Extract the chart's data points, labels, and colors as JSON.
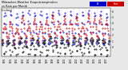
{
  "title": "Milwaukee Weather Evapotranspiration vs Rain per Month (Inches)",
  "title_fontsize": 2.8,
  "background_color": "#e8e8e8",
  "plot_bg_color": "#ffffff",
  "legend_labels": [
    "ET",
    "Rain"
  ],
  "legend_colors": [
    "#0000cc",
    "#cc0000"
  ],
  "months_per_year": 12,
  "years": [
    1990,
    1991,
    1992,
    1993,
    1994,
    1995,
    1996,
    1997,
    1998,
    1999,
    2000,
    2001,
    2002,
    2003,
    2004,
    2005,
    2006,
    2007
  ],
  "et_data": [
    0.5,
    0.6,
    1.2,
    2.5,
    4.0,
    5.2,
    5.8,
    5.3,
    3.8,
    2.3,
    1.0,
    0.5,
    0.6,
    0.7,
    1.5,
    2.8,
    4.3,
    5.5,
    6.0,
    5.4,
    3.9,
    2.4,
    1.1,
    0.6,
    0.5,
    0.6,
    1.3,
    2.4,
    3.8,
    5.0,
    5.6,
    5.1,
    3.7,
    2.2,
    0.9,
    0.5,
    0.6,
    0.8,
    1.4,
    2.6,
    4.1,
    5.3,
    5.9,
    5.3,
    3.8,
    2.3,
    1.0,
    0.5,
    0.7,
    0.9,
    1.6,
    2.9,
    4.4,
    5.7,
    6.1,
    5.5,
    4.0,
    2.5,
    1.2,
    0.7,
    0.6,
    0.7,
    1.2,
    2.5,
    4.0,
    5.2,
    5.8,
    5.3,
    3.8,
    2.3,
    1.0,
    0.5,
    0.7,
    0.8,
    1.5,
    2.7,
    4.3,
    5.5,
    6.0,
    5.4,
    3.9,
    2.4,
    1.1,
    0.6,
    0.5,
    0.6,
    1.3,
    2.4,
    3.8,
    5.0,
    5.6,
    5.1,
    3.7,
    2.2,
    0.9,
    0.5,
    0.6,
    0.8,
    1.4,
    2.6,
    4.1,
    5.3,
    5.9,
    5.3,
    3.8,
    2.3,
    1.0,
    0.5,
    0.7,
    0.9,
    1.6,
    2.9,
    4.4,
    5.7,
    6.1,
    5.5,
    4.0,
    2.5,
    1.2,
    0.7,
    0.6,
    0.7,
    1.2,
    2.5,
    4.0,
    5.2,
    5.8,
    5.3,
    3.8,
    2.3,
    1.0,
    0.5,
    0.7,
    0.8,
    1.5,
    2.7,
    4.3,
    5.5,
    6.0,
    5.4,
    3.9,
    2.4,
    1.1,
    0.6,
    0.5,
    0.6,
    1.3,
    2.4,
    3.8,
    5.0,
    5.6,
    5.1,
    3.7,
    2.2,
    0.9,
    0.5,
    0.6,
    0.8,
    1.4,
    2.6,
    4.1,
    5.3,
    5.9,
    5.3,
    3.8,
    2.3,
    1.0,
    0.5,
    0.7,
    0.9,
    1.6,
    2.9,
    4.4,
    5.7,
    6.1,
    5.5,
    4.0,
    2.5,
    1.2,
    0.7,
    0.6,
    0.7,
    1.2,
    2.5,
    4.0,
    5.2,
    5.8,
    5.3,
    3.8,
    2.3,
    1.0,
    0.5,
    0.7,
    0.8,
    1.5,
    2.7,
    4.3,
    5.5,
    6.0,
    5.4,
    3.9,
    2.4,
    1.1,
    0.6,
    0.5,
    0.6,
    1.3,
    2.4,
    3.8,
    5.0,
    5.6,
    5.1,
    3.7,
    2.2,
    0.9,
    0.5
  ],
  "rain_data": [
    1.2,
    1.0,
    2.5,
    3.2,
    3.0,
    4.0,
    3.5,
    3.2,
    3.0,
    2.5,
    1.8,
    1.5,
    1.8,
    1.2,
    2.2,
    3.5,
    3.8,
    4.2,
    4.0,
    3.5,
    3.2,
    2.8,
    2.0,
    1.8,
    0.8,
    0.5,
    1.2,
    2.2,
    2.5,
    3.2,
    2.8,
    3.0,
    2.5,
    2.2,
    1.5,
    1.2,
    1.5,
    1.8,
    3.0,
    4.2,
    4.8,
    5.2,
    5.0,
    4.5,
    4.0,
    3.2,
    2.2,
    2.0,
    0.8,
    1.0,
    1.8,
    2.8,
    3.2,
    3.8,
    3.5,
    3.2,
    2.8,
    2.2,
    1.5,
    1.2,
    2.0,
    1.5,
    2.8,
    3.8,
    4.2,
    4.8,
    4.5,
    4.0,
    3.5,
    3.0,
    2.2,
    1.8,
    1.2,
    1.0,
    2.2,
    3.0,
    3.5,
    4.2,
    3.8,
    3.5,
    3.0,
    2.5,
    1.8,
    1.5,
    1.5,
    1.2,
    2.5,
    3.2,
    4.0,
    4.5,
    4.2,
    3.8,
    3.2,
    2.8,
    2.0,
    1.8,
    2.2,
    1.8,
    3.2,
    4.2,
    5.0,
    5.5,
    5.2,
    4.8,
    4.2,
    3.5,
    2.5,
    2.2,
    1.0,
    0.8,
    2.0,
    3.0,
    3.5,
    4.2,
    3.8,
    3.5,
    3.0,
    2.5,
    1.8,
    1.5,
    1.8,
    1.5,
    2.8,
    3.8,
    4.5,
    5.2,
    4.8,
    4.2,
    3.8,
    3.2,
    2.2,
    1.8,
    1.2,
    1.0,
    2.2,
    3.2,
    3.8,
    4.5,
    4.0,
    3.8,
    3.2,
    2.8,
    2.0,
    1.5,
    2.0,
    1.5,
    3.0,
    4.0,
    4.8,
    5.2,
    5.0,
    4.5,
    4.0,
    3.2,
    2.2,
    2.0,
    0.8,
    0.5,
    1.8,
    2.8,
    3.2,
    4.0,
    3.5,
    3.2,
    2.8,
    2.2,
    1.5,
    1.2,
    2.2,
    2.0,
    3.2,
    4.2,
    5.0,
    5.5,
    5.2,
    4.8,
    4.2,
    3.5,
    2.5,
    2.2,
    1.5,
    1.2,
    2.5,
    3.5,
    4.2,
    4.8,
    4.5,
    4.0,
    3.5,
    3.0,
    2.0,
    1.8,
    1.8,
    1.5,
    2.8,
    4.0,
    4.5,
    5.2,
    4.8,
    4.2,
    3.8,
    3.2,
    2.2,
    2.0,
    1.2,
    1.0,
    2.2,
    3.2,
    3.8,
    4.5,
    4.0,
    3.8,
    3.2,
    2.8,
    2.0,
    1.5
  ],
  "diff_color": "#000000",
  "ylim": [
    -1.5,
    6.5
  ],
  "grid_color": "#999999",
  "et_color": "#0000cc",
  "rain_color": "#cc0000",
  "marker_size": 0.8
}
